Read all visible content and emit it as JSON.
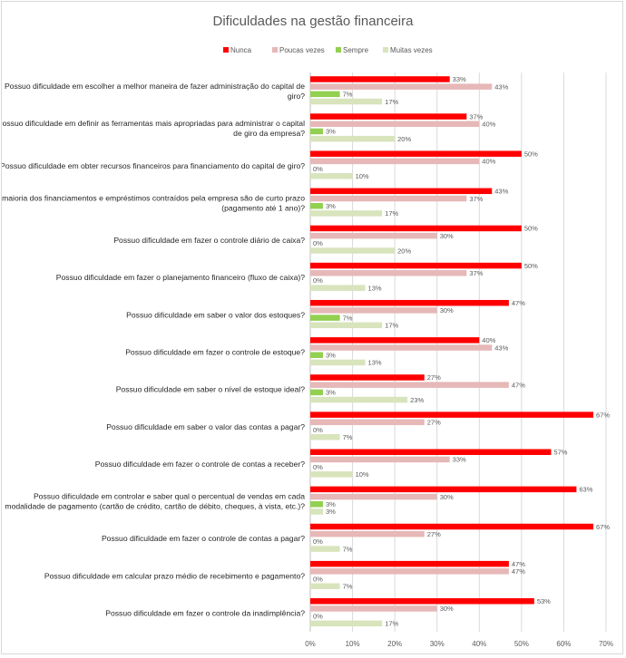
{
  "colors": {
    "Nunca": "#ff0000",
    "Poucas vezes": "#e6b8b7",
    "Sempre": "#92d050",
    "Muitas vezes": "#d8e4bc",
    "axis": "#bfbfbf",
    "grid": "#d9d9d9",
    "text": "#595959"
  },
  "chart_data": {
    "type": "bar",
    "orientation": "horizontal",
    "title": "Dificuldades na gestão financeira",
    "legend_position": "top",
    "xlim": [
      0,
      70
    ],
    "x_ticks": [
      "0%",
      "10%",
      "20%",
      "30%",
      "40%",
      "50%",
      "60%",
      "70%"
    ],
    "grid": true,
    "categories": [
      [
        "Possuo dificuldade em escolher a melhor maneira de fazer administração do capital de",
        "giro?"
      ],
      [
        "Possuo dificuldade em definir as ferramentas mais apropriadas para administrar o capital",
        "de giro da empresa?"
      ],
      [
        "Possuo dificuldade em obter recursos financeiros para financiamento do capital de giro?"
      ],
      [
        "A maioria dos financiamentos e empréstimos contraídos pela empresa são de curto prazo",
        "(pagamento até 1 ano)?"
      ],
      [
        "Possuo dificuldade em fazer o controle diário de caixa?"
      ],
      [
        "Possuo dificuldade em fazer o planejamento financeiro (fluxo de caixa)?"
      ],
      [
        "Possuo dificuldade em saber o valor dos estoques?"
      ],
      [
        "Possuo dificuldade em fazer o controle de estoque?"
      ],
      [
        "Possuo dificuldade em saber o nível de estoque ideal?"
      ],
      [
        "Possuo dificuldade em saber o valor das contas a pagar?"
      ],
      [
        "Possuo dificuldade em fazer o controle de contas a receber?"
      ],
      [
        "Possuo dificuldade em controlar e saber qual o percentual de vendas em cada",
        "modalidade de pagamento (cartão de crédito, cartão de débito, cheques, à vista, etc.)?"
      ],
      [
        "Possuo dificuldade em fazer o controle de contas a pagar?"
      ],
      [
        "Possuo dificuldade em calcular prazo médio de recebimento e pagamento?"
      ],
      [
        "Possuo dificuldade em fazer o controle da inadimplência?"
      ]
    ],
    "series": [
      {
        "name": "Nunca",
        "values": [
          33,
          37,
          50,
          43,
          50,
          50,
          47,
          40,
          27,
          67,
          57,
          63,
          67,
          47,
          53
        ]
      },
      {
        "name": "Poucas vezes",
        "values": [
          43,
          40,
          40,
          37,
          30,
          37,
          30,
          43,
          47,
          27,
          33,
          30,
          27,
          47,
          30
        ]
      },
      {
        "name": "Sempre",
        "values": [
          7,
          3,
          0,
          3,
          0,
          0,
          7,
          3,
          3,
          0,
          0,
          3,
          0,
          0,
          0
        ]
      },
      {
        "name": "Muitas vezes",
        "values": [
          17,
          20,
          10,
          17,
          20,
          13,
          17,
          13,
          23,
          7,
          10,
          3,
          7,
          7,
          17
        ]
      }
    ],
    "labels": [
      [
        "33%",
        "43%",
        "7%",
        "17%"
      ],
      [
        "37%",
        "40%",
        "3%",
        "20%"
      ],
      [
        "50%",
        "40%",
        "0%",
        "10%"
      ],
      [
        "43%",
        "37%",
        "3%",
        "17%"
      ],
      [
        "50%",
        "30%",
        "0%",
        "20%"
      ],
      [
        "50%",
        "37%",
        "0%",
        "13%"
      ],
      [
        "47%",
        "30%",
        "7%",
        "17%"
      ],
      [
        "40%",
        "43%",
        "3%",
        "13%"
      ],
      [
        "27%",
        "47%",
        "3%",
        "23%"
      ],
      [
        "67%",
        "27%",
        "0%",
        "7%"
      ],
      [
        "57%",
        "33%",
        "0%",
        "10%"
      ],
      [
        "63%",
        "30%",
        "3%",
        "3%"
      ],
      [
        "67%",
        "27%",
        "0%",
        "7%"
      ],
      [
        "47%",
        "47%",
        "0%",
        "7%"
      ],
      [
        "53%",
        "30%",
        "0%",
        "17%"
      ]
    ]
  }
}
